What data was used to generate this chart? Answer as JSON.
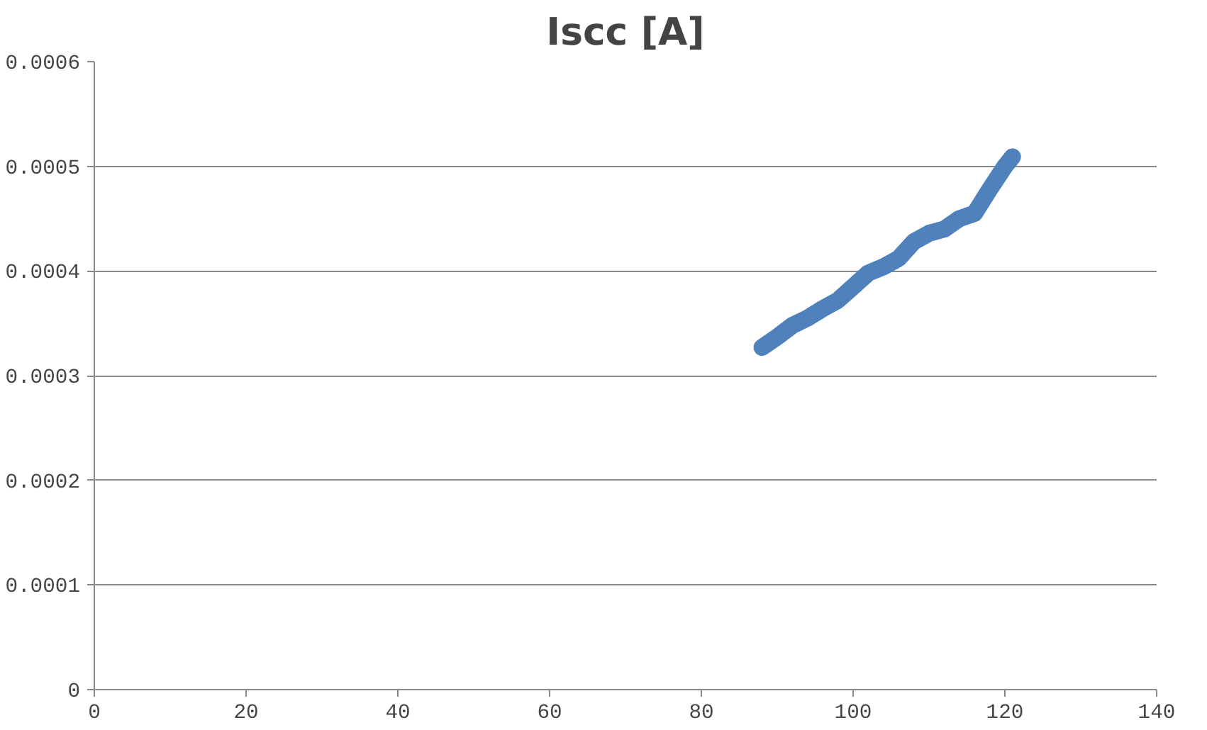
{
  "chart_data": {
    "type": "line",
    "title": "Iscc [A]",
    "x": [
      88,
      90,
      92,
      94,
      96,
      98,
      100,
      102,
      104,
      106,
      108,
      110,
      112,
      114,
      116,
      118,
      120,
      121
    ],
    "series": [
      {
        "color": "#4f81bd",
        "values": [
          0.000327,
          0.000337,
          0.000348,
          0.000355,
          0.000364,
          0.000372,
          0.000385,
          0.000398,
          0.000404,
          0.000412,
          0.000428,
          0.000436,
          0.00044,
          0.00045,
          0.000455,
          0.000478,
          0.0005,
          0.000509
        ]
      }
    ],
    "xlim": [
      0,
      140
    ],
    "xticks": [
      0,
      20,
      40,
      60,
      80,
      100,
      120,
      140
    ],
    "ylim": [
      0,
      0.0006
    ],
    "yticks": [
      {
        "value": 0,
        "label": "0"
      },
      {
        "value": 0.0001,
        "label": "0.0001"
      },
      {
        "value": 0.0002,
        "label": "0.0002"
      },
      {
        "value": 0.0003,
        "label": "0.0003"
      },
      {
        "value": 0.0004,
        "label": "0.0004"
      },
      {
        "value": 0.0005,
        "label": "0.0005"
      },
      {
        "value": 0.0006,
        "label": "0.0006"
      }
    ],
    "grid": "y",
    "line_style": "solid"
  }
}
